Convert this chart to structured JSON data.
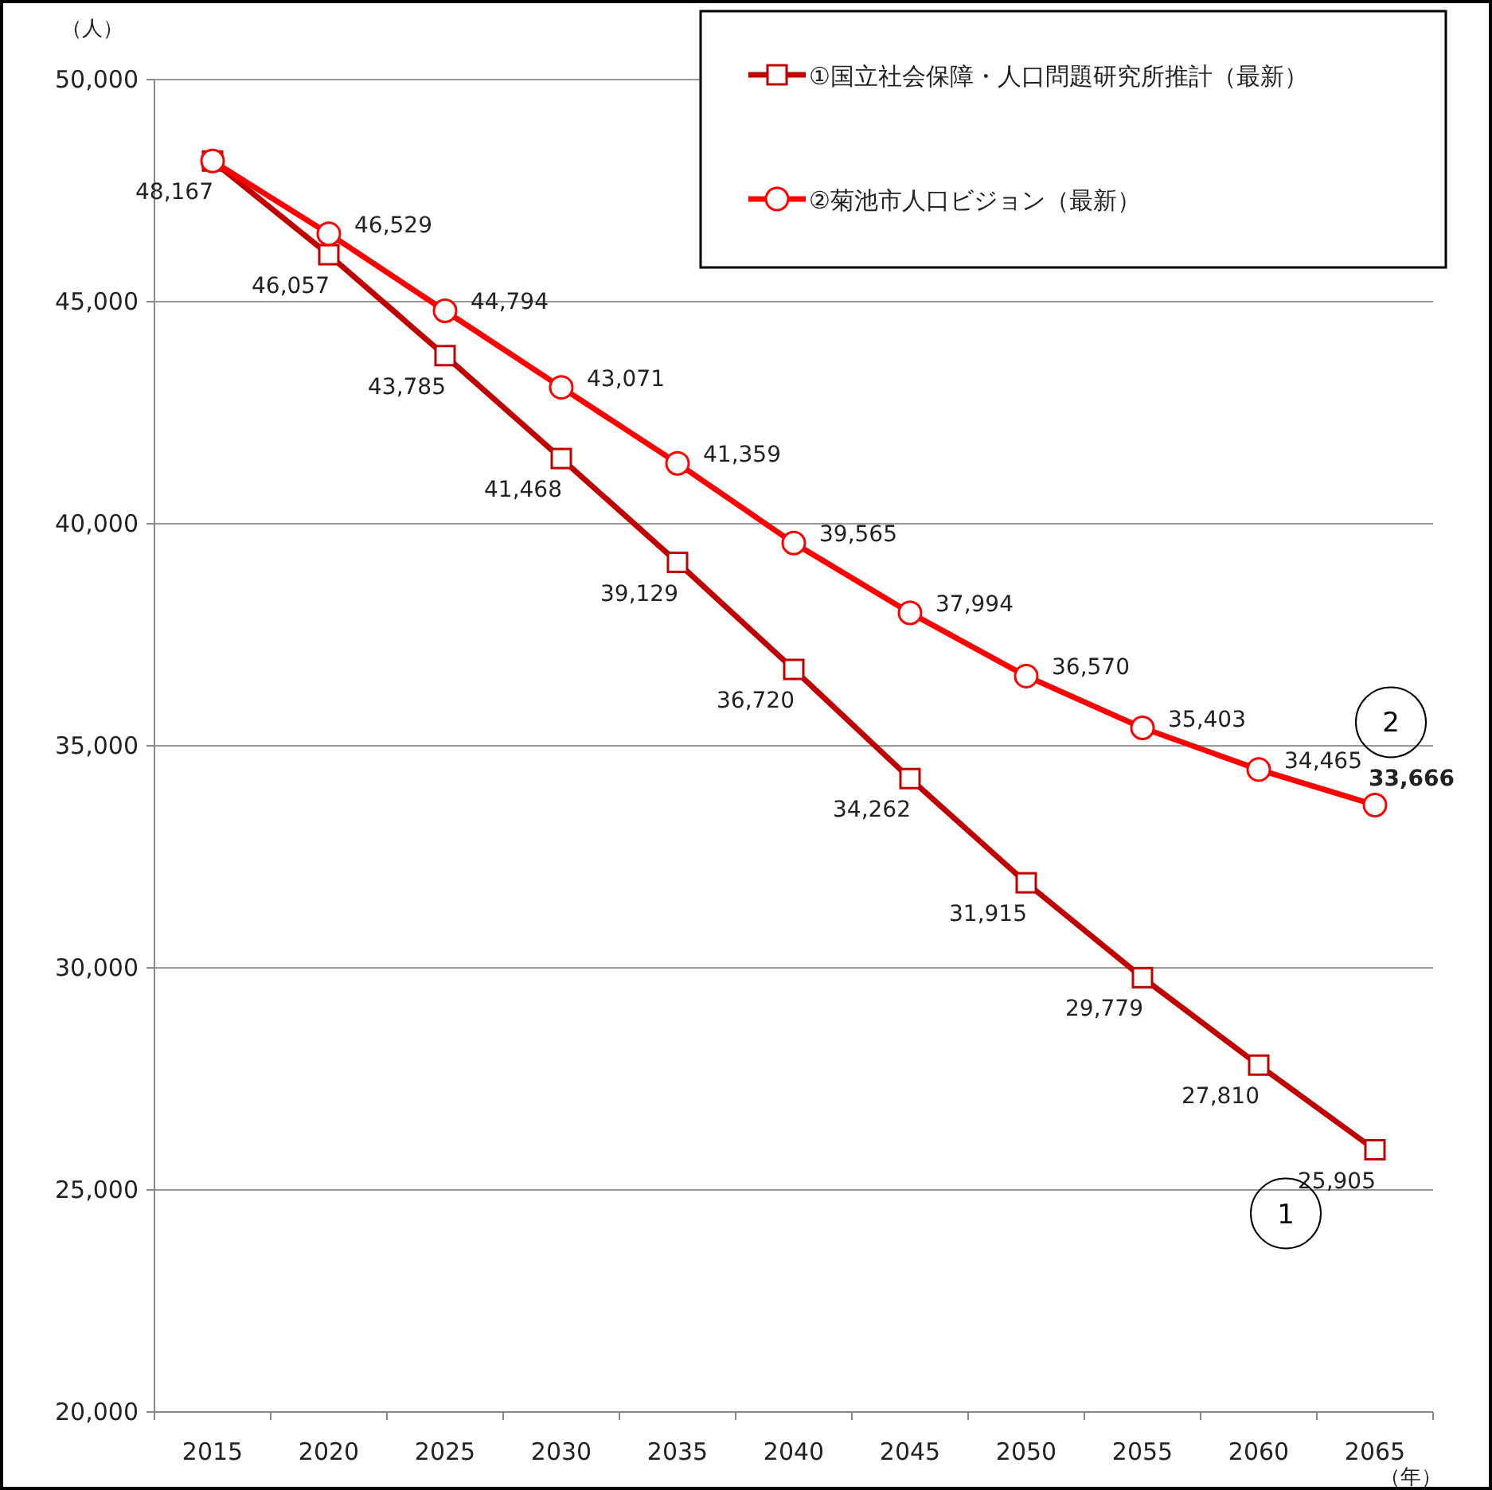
{
  "chart_data": {
    "type": "line",
    "xlabel": "（年）",
    "ylabel": "（人）",
    "categories": [
      "2015",
      "2020",
      "2025",
      "2030",
      "2035",
      "2040",
      "2045",
      "2050",
      "2055",
      "2060",
      "2065"
    ],
    "series": [
      {
        "name": "①国立社会保障・人口問題研究所推計（最新）",
        "color": "#c00000",
        "marker": "square",
        "values": [
          48167,
          46057,
          43785,
          41468,
          39129,
          36720,
          34262,
          31915,
          29779,
          27810,
          25905
        ],
        "value_labels": [
          "48,167",
          "46,057",
          "43,785",
          "41,468",
          "39,129",
          "36,720",
          "34,262",
          "31,915",
          "29,779",
          "27,810",
          "25,905"
        ]
      },
      {
        "name": "②菊池市人口ビジョン（最新）",
        "color": "#ff0000",
        "marker": "circle",
        "values": [
          48167,
          46529,
          44794,
          43071,
          41359,
          39565,
          37994,
          36570,
          35403,
          34465,
          33666
        ],
        "value_labels": [
          null,
          "46,529",
          "44,794",
          "43,071",
          "41,359",
          "39,565",
          "37,994",
          "36,570",
          "35,403",
          "34,465",
          "**33,666**"
        ]
      }
    ],
    "ylim": [
      20000,
      50000
    ],
    "yticks": [
      {
        "value": 20000,
        "label": "20,000"
      },
      {
        "value": 25000,
        "label": "25,000"
      },
      {
        "value": 30000,
        "label": "30,000"
      },
      {
        "value": 35000,
        "label": "35,000"
      },
      {
        "value": 40000,
        "label": "40,000"
      },
      {
        "value": 45000,
        "label": "45,000"
      },
      {
        "value": 50000,
        "label": "50,000"
      }
    ],
    "grid": "y",
    "legend": "top right",
    "line_style": "solid",
    "annotations": [
      "1",
      "2"
    ]
  }
}
